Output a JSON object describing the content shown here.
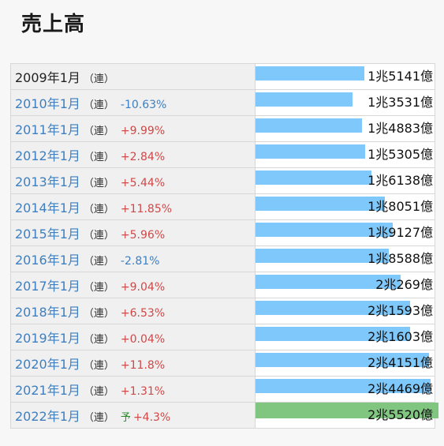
{
  "title": "売上高",
  "colors": {
    "actual_bar": "#7ec8fc",
    "forecast_bar": "#80c680",
    "increase": "#d04848",
    "decrease": "#3d7fc0"
  },
  "chart_data": {
    "type": "bar",
    "orientation": "horizontal",
    "title": "売上高",
    "unit": "億",
    "value_max": 25520,
    "rows": [
      {
        "period": "2009年1月",
        "basis": "（連）",
        "forecast_mark": "",
        "change": "",
        "direction": "none",
        "amount_label": "1兆5141億",
        "value": 15141,
        "forecast": false
      },
      {
        "period": "2010年1月",
        "basis": "（連）",
        "forecast_mark": "",
        "change": "-10.63%",
        "direction": "down",
        "amount_label": "1兆3531億",
        "value": 13531,
        "forecast": false
      },
      {
        "period": "2011年1月",
        "basis": "（連）",
        "forecast_mark": "",
        "change": "+9.99%",
        "direction": "up",
        "amount_label": "1兆4883億",
        "value": 14883,
        "forecast": false
      },
      {
        "period": "2012年1月",
        "basis": "（連）",
        "forecast_mark": "",
        "change": "+2.84%",
        "direction": "up",
        "amount_label": "1兆5305億",
        "value": 15305,
        "forecast": false
      },
      {
        "period": "2013年1月",
        "basis": "（連）",
        "forecast_mark": "",
        "change": "+5.44%",
        "direction": "up",
        "amount_label": "1兆6138億",
        "value": 16138,
        "forecast": false
      },
      {
        "period": "2014年1月",
        "basis": "（連）",
        "forecast_mark": "",
        "change": "+11.85%",
        "direction": "up",
        "amount_label": "1兆8051億",
        "value": 18051,
        "forecast": false
      },
      {
        "period": "2015年1月",
        "basis": "（連）",
        "forecast_mark": "",
        "change": "+5.96%",
        "direction": "up",
        "amount_label": "1兆9127億",
        "value": 19127,
        "forecast": false
      },
      {
        "period": "2016年1月",
        "basis": "（連）",
        "forecast_mark": "",
        "change": "-2.81%",
        "direction": "down",
        "amount_label": "1兆8588億",
        "value": 18588,
        "forecast": false
      },
      {
        "period": "2017年1月",
        "basis": "（連）",
        "forecast_mark": "",
        "change": "+9.04%",
        "direction": "up",
        "amount_label": "2兆269億",
        "value": 20269,
        "forecast": false
      },
      {
        "period": "2018年1月",
        "basis": "（連）",
        "forecast_mark": "",
        "change": "+6.53%",
        "direction": "up",
        "amount_label": "2兆1593億",
        "value": 21593,
        "forecast": false
      },
      {
        "period": "2019年1月",
        "basis": "（連）",
        "forecast_mark": "",
        "change": "+0.04%",
        "direction": "up",
        "amount_label": "2兆1603億",
        "value": 21603,
        "forecast": false
      },
      {
        "period": "2020年1月",
        "basis": "（連）",
        "forecast_mark": "",
        "change": "+11.8%",
        "direction": "up",
        "amount_label": "2兆4151億",
        "value": 24151,
        "forecast": false
      },
      {
        "period": "2021年1月",
        "basis": "（連）",
        "forecast_mark": "",
        "change": "+1.31%",
        "direction": "up",
        "amount_label": "2兆4469億",
        "value": 24469,
        "forecast": false
      },
      {
        "period": "2022年1月",
        "basis": "（連）",
        "forecast_mark": "予",
        "change": "+4.3%",
        "direction": "up",
        "amount_label": "2兆5520億",
        "value": 25520,
        "forecast": true
      }
    ]
  }
}
